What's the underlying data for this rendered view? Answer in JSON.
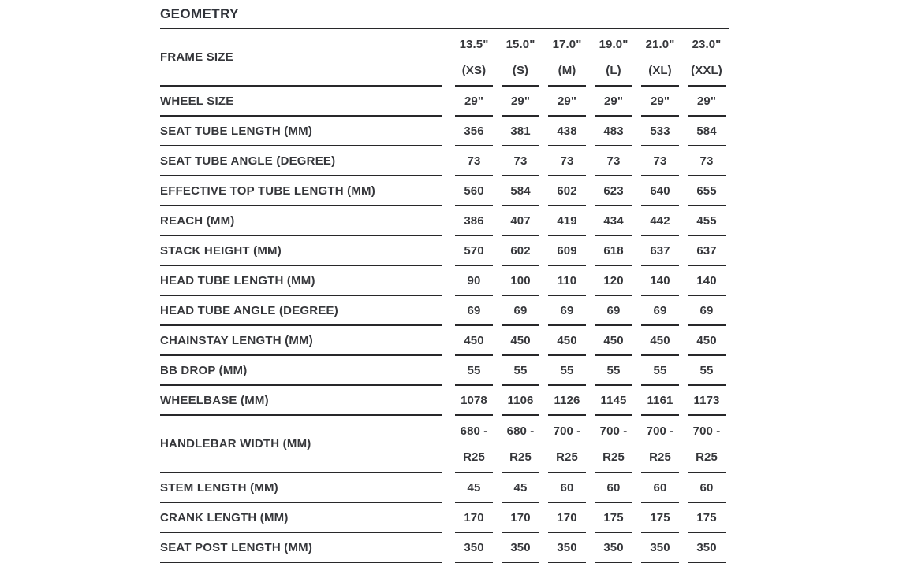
{
  "header": {
    "title": "GEOMETRY"
  },
  "colors": {
    "ink": "#36373b",
    "rule": "#28282a",
    "background": "#ffffff"
  },
  "table": {
    "rows": [
      {
        "label": "FRAME SIZE",
        "values": [
          "13.5\"\n(XS)",
          "15.0\"\n(S)",
          "17.0\"\n(M)",
          "19.0\"\n(L)",
          "21.0\"\n(XL)",
          "23.0\"\n(XXL)"
        ]
      },
      {
        "label": "WHEEL SIZE",
        "values": [
          "29\"",
          "29\"",
          "29\"",
          "29\"",
          "29\"",
          "29\""
        ]
      },
      {
        "label": "SEAT TUBE LENGTH (MM)",
        "values": [
          "356",
          "381",
          "438",
          "483",
          "533",
          "584"
        ]
      },
      {
        "label": "SEAT TUBE ANGLE (DEGREE)",
        "values": [
          "73",
          "73",
          "73",
          "73",
          "73",
          "73"
        ]
      },
      {
        "label": "EFFECTIVE TOP TUBE LENGTH (MM)",
        "values": [
          "560",
          "584",
          "602",
          "623",
          "640",
          "655"
        ]
      },
      {
        "label": "REACH (MM)",
        "values": [
          "386",
          "407",
          "419",
          "434",
          "442",
          "455"
        ]
      },
      {
        "label": "STACK HEIGHT (MM)",
        "values": [
          "570",
          "602",
          "609",
          "618",
          "637",
          "637"
        ]
      },
      {
        "label": "HEAD TUBE LENGTH (MM)",
        "values": [
          "90",
          "100",
          "110",
          "120",
          "140",
          "140"
        ]
      },
      {
        "label": "HEAD TUBE ANGLE (DEGREE)",
        "values": [
          "69",
          "69",
          "69",
          "69",
          "69",
          "69"
        ]
      },
      {
        "label": "CHAINSTAY LENGTH (MM)",
        "values": [
          "450",
          "450",
          "450",
          "450",
          "450",
          "450"
        ]
      },
      {
        "label": "BB DROP (MM)",
        "values": [
          "55",
          "55",
          "55",
          "55",
          "55",
          "55"
        ]
      },
      {
        "label": "WHEELBASE (MM)",
        "values": [
          "1078",
          "1106",
          "1126",
          "1145",
          "1161",
          "1173"
        ]
      },
      {
        "label": "HANDLEBAR WIDTH (MM)",
        "values": [
          "680 -\nR25",
          "680 -\nR25",
          "700 -\nR25",
          "700 -\nR25",
          "700 -\nR25",
          "700 -\nR25"
        ]
      },
      {
        "label": "STEM LENGTH (MM)",
        "values": [
          "45",
          "45",
          "60",
          "60",
          "60",
          "60"
        ]
      },
      {
        "label": "CRANK LENGTH (MM)",
        "values": [
          "170",
          "170",
          "170",
          "175",
          "175",
          "175"
        ]
      },
      {
        "label": "SEAT POST LENGTH (MM)",
        "values": [
          "350",
          "350",
          "350",
          "350",
          "350",
          "350"
        ]
      }
    ]
  }
}
